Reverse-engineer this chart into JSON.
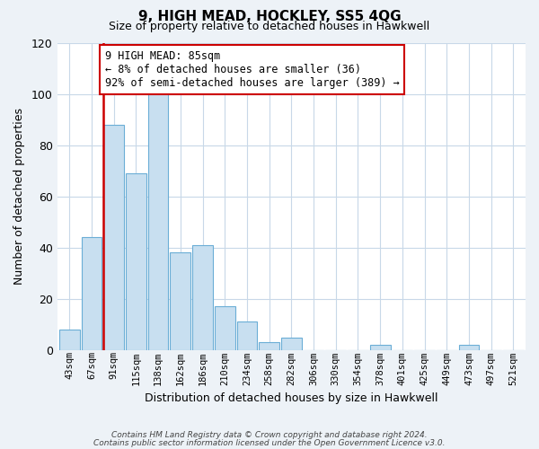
{
  "title": "9, HIGH MEAD, HOCKLEY, SS5 4QG",
  "subtitle": "Size of property relative to detached houses in Hawkwell",
  "xlabel": "Distribution of detached houses by size in Hawkwell",
  "ylabel": "Number of detached properties",
  "bar_labels": [
    "43sqm",
    "67sqm",
    "91sqm",
    "115sqm",
    "138sqm",
    "162sqm",
    "186sqm",
    "210sqm",
    "234sqm",
    "258sqm",
    "282sqm",
    "306sqm",
    "330sqm",
    "354sqm",
    "378sqm",
    "401sqm",
    "425sqm",
    "449sqm",
    "473sqm",
    "497sqm",
    "521sqm"
  ],
  "bar_values": [
    8,
    44,
    88,
    69,
    101,
    38,
    41,
    17,
    11,
    3,
    5,
    0,
    0,
    0,
    2,
    0,
    0,
    0,
    2,
    0,
    0
  ],
  "bar_color": "#c8dff0",
  "bar_edge_color": "#6baed6",
  "vline_color": "#cc0000",
  "vline_bar_index": 2,
  "ylim": [
    0,
    120
  ],
  "yticks": [
    0,
    20,
    40,
    60,
    80,
    100,
    120
  ],
  "ann_line1": "9 HIGH MEAD: 85sqm",
  "ann_line2": "← 8% of detached houses are smaller (36)",
  "ann_line3": "92% of semi-detached houses are larger (389) →",
  "footnote1": "Contains HM Land Registry data © Crown copyright and database right 2024.",
  "footnote2": "Contains public sector information licensed under the Open Government Licence v3.0.",
  "bg_color": "#edf2f7",
  "plot_bg_color": "#ffffff",
  "grid_color": "#c8d8e8",
  "title_fontsize": 11,
  "subtitle_fontsize": 9
}
